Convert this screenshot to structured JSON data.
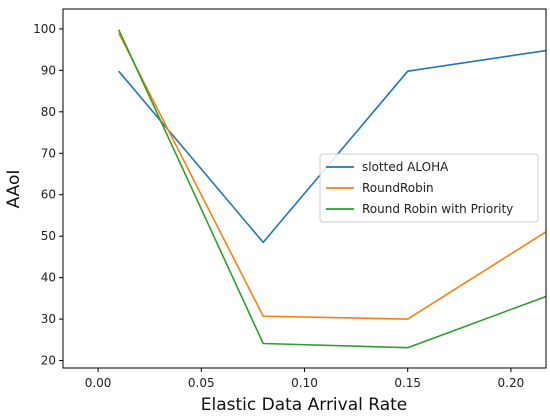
{
  "chart_data": {
    "type": "line",
    "title": "",
    "xlabel": "Elastic Data Arrival Rate",
    "ylabel": "AAoI",
    "xlim": [
      -0.017,
      0.217
    ],
    "ylim": [
      18.2,
      104.8
    ],
    "x_ticks": [
      "0.00",
      "0.05",
      "0.10",
      "0.15",
      "0.20"
    ],
    "y_ticks": [
      "20",
      "30",
      "40",
      "50",
      "60",
      "70",
      "80",
      "90",
      "100"
    ],
    "grid": false,
    "legend_position": "center-right",
    "series": [
      {
        "name": "slotted ALOHA",
        "color": "#1f77b4",
        "x": [
          0.01,
          0.08,
          0.15,
          0.22
        ],
        "y": [
          89.8,
          48.5,
          89.8,
          95.0
        ]
      },
      {
        "name": "RoundRobin",
        "color": "#ff7f0e",
        "x": [
          0.01,
          0.08,
          0.15,
          0.22
        ],
        "y": [
          99.0,
          30.7,
          30.0,
          52.0
        ]
      },
      {
        "name": "Round Robin with Priority",
        "color": "#2ca02c",
        "x": [
          0.01,
          0.08,
          0.15,
          0.22
        ],
        "y": [
          99.8,
          24.1,
          23.1,
          36.0
        ]
      }
    ]
  }
}
